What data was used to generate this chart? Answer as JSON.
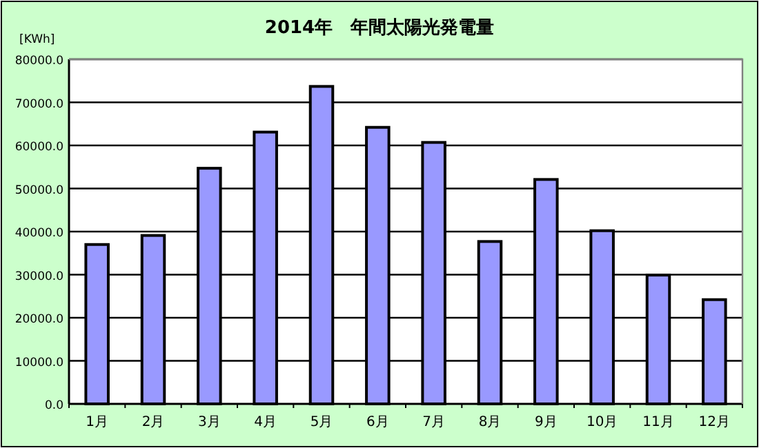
{
  "chart_data": {
    "type": "bar",
    "title": "2014年　年間太陽光発電量",
    "ylabel": "[KWh]",
    "categories": [
      "1月",
      "2月",
      "3月",
      "4月",
      "5月",
      "6月",
      "7月",
      "8月",
      "9月",
      "10月",
      "11月",
      "12月"
    ],
    "values": [
      37000,
      39100,
      54700,
      63100,
      73700,
      64200,
      60700,
      37700,
      52100,
      40200,
      29900,
      24200
    ],
    "color": "#9999ff",
    "ylim": [
      0,
      80000
    ],
    "yticks": [
      {
        "value": 0,
        "label": "0.0"
      },
      {
        "value": 10000,
        "label": "10000.0"
      },
      {
        "value": 20000,
        "label": "20000.0"
      },
      {
        "value": 30000,
        "label": "30000.0"
      },
      {
        "value": 40000,
        "label": "40000.0"
      },
      {
        "value": 50000,
        "label": "50000.0"
      },
      {
        "value": 60000,
        "label": "60000.0"
      },
      {
        "value": 70000,
        "label": "70000.0"
      },
      {
        "value": 80000,
        "label": "80000.0"
      }
    ],
    "grid": "y"
  }
}
